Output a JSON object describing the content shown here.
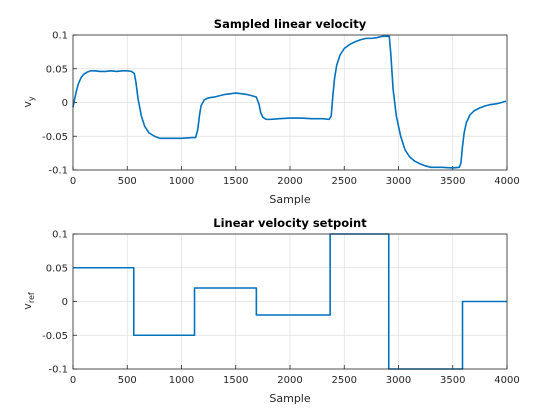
{
  "figure": {
    "colors": {
      "line": "#0072BD",
      "grid": "#dfdfdf",
      "axis": "#262626",
      "background": "#ffffff"
    }
  },
  "chart_data": [
    {
      "type": "line",
      "title": "Sampled linear velocity",
      "xlabel": "Sample",
      "ylabel": {
        "base": "v",
        "sub": "y"
      },
      "xlim": [
        0,
        4000
      ],
      "ylim": [
        -0.1,
        0.1
      ],
      "xticks": [
        0,
        500,
        1000,
        1500,
        2000,
        2500,
        3000,
        3500,
        4000
      ],
      "xtick_labels": [
        "0",
        "500",
        "1000",
        "1500",
        "2000",
        "2500",
        "3000",
        "3500",
        "4000"
      ],
      "yticks": [
        -0.1,
        -0.05,
        0,
        0.05,
        0.1
      ],
      "ytick_labels": [
        "-0.1",
        "-0.05",
        "0",
        "0.05",
        "0.1"
      ],
      "grid": true,
      "series": [
        {
          "x": [
            0,
            15,
            30,
            50,
            75,
            100,
            130,
            165,
            200,
            250,
            300,
            350,
            400,
            450,
            500,
            540,
            565,
            580,
            600,
            630,
            660,
            700,
            750,
            800,
            900,
            1000,
            1100,
            1130,
            1150,
            1165,
            1180,
            1210,
            1250,
            1300,
            1350,
            1400,
            1500,
            1550,
            1600,
            1650,
            1690,
            1715,
            1730,
            1750,
            1780,
            1820,
            1900,
            2000,
            2100,
            2200,
            2300,
            2360,
            2380,
            2395,
            2410,
            2430,
            2460,
            2500,
            2550,
            2600,
            2650,
            2700,
            2750,
            2800,
            2850,
            2900,
            2915,
            2930,
            2950,
            2980,
            3020,
            3060,
            3100,
            3150,
            3200,
            3250,
            3300,
            3400,
            3500,
            3560,
            3575,
            3590,
            3605,
            3625,
            3660,
            3700,
            3750,
            3800,
            3850,
            3900,
            3950,
            3990
          ],
          "values": [
            -0.007,
            0.005,
            0.016,
            0.028,
            0.037,
            0.042,
            0.045,
            0.047,
            0.047,
            0.046,
            0.046,
            0.047,
            0.046,
            0.047,
            0.047,
            0.046,
            0.043,
            0.03,
            0.005,
            -0.02,
            -0.035,
            -0.045,
            -0.05,
            -0.053,
            -0.053,
            -0.053,
            -0.052,
            -0.052,
            -0.04,
            -0.02,
            -0.005,
            0.004,
            0.007,
            0.008,
            0.01,
            0.012,
            0.014,
            0.013,
            0.012,
            0.01,
            0.008,
            -0.003,
            -0.015,
            -0.022,
            -0.025,
            -0.025,
            -0.024,
            -0.023,
            -0.023,
            -0.024,
            -0.024,
            -0.025,
            -0.02,
            0.01,
            0.035,
            0.055,
            0.07,
            0.08,
            0.086,
            0.09,
            0.093,
            0.095,
            0.095,
            0.096,
            0.098,
            0.098,
            0.098,
            0.07,
            0.02,
            -0.02,
            -0.05,
            -0.07,
            -0.08,
            -0.087,
            -0.091,
            -0.094,
            -0.096,
            -0.096,
            -0.097,
            -0.096,
            -0.09,
            -0.065,
            -0.045,
            -0.03,
            -0.018,
            -0.012,
            -0.008,
            -0.005,
            -0.003,
            -0.002,
            0.0,
            0.002
          ]
        }
      ]
    },
    {
      "type": "line",
      "title": "Linear velocity setpoint",
      "xlabel": "Sample",
      "ylabel": {
        "base": "v",
        "sub": "ref"
      },
      "xlim": [
        0,
        4000
      ],
      "ylim": [
        -0.1,
        0.1
      ],
      "xticks": [
        0,
        500,
        1000,
        1500,
        2000,
        2500,
        3000,
        3500,
        4000
      ],
      "xtick_labels": [
        "0",
        "500",
        "1000",
        "1500",
        "2000",
        "2500",
        "3000",
        "3500",
        "4000"
      ],
      "yticks": [
        -0.1,
        -0.05,
        0,
        0.05,
        0.1
      ],
      "ytick_labels": [
        "-0.1",
        "-0.05",
        "0",
        "0.05",
        "0.1"
      ],
      "grid": true,
      "series": [
        {
          "x": [
            0,
            560,
            560,
            1120,
            1120,
            1690,
            1690,
            2370,
            2370,
            2910,
            2910,
            3590,
            3590,
            4000
          ],
          "values": [
            0.05,
            0.05,
            -0.05,
            -0.05,
            0.02,
            0.02,
            -0.02,
            -0.02,
            0.1,
            0.1,
            -0.1,
            -0.1,
            0,
            0
          ]
        }
      ]
    }
  ]
}
